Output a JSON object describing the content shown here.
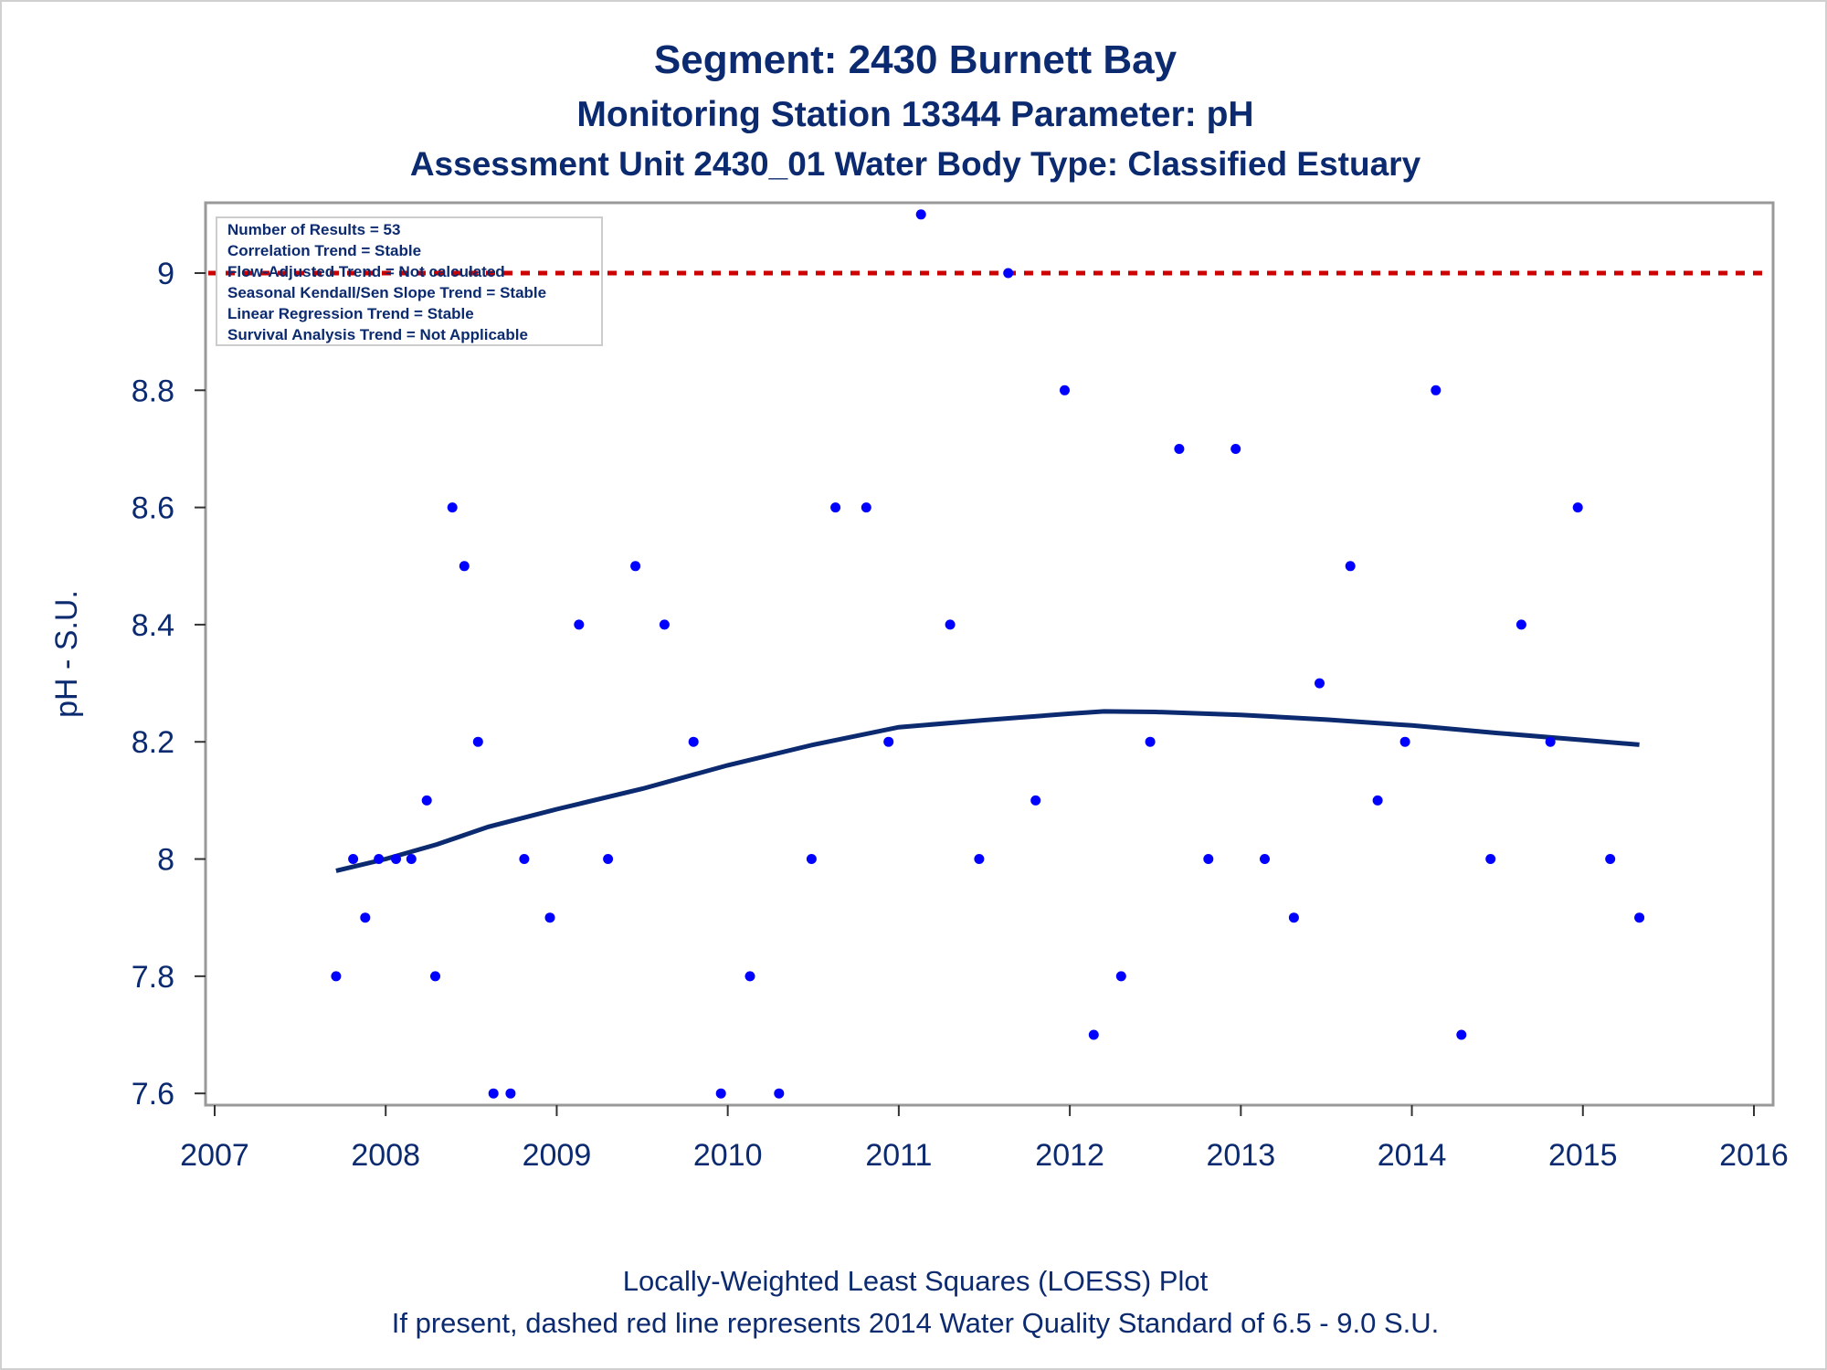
{
  "titles": {
    "line1": "Segment: 2430  Burnett Bay",
    "line2": "Monitoring Station 13344 Parameter: pH",
    "line3": "Assessment Unit 2430_01   Water Body Type: Classified Estuary"
  },
  "footnotes": {
    "line1": "Locally-Weighted Least Squares (LOESS) Plot",
    "line2": "If present, dashed red line represents 2014 Water Quality Standard of 6.5 - 9.0 S.U."
  },
  "info_box": [
    "Number of Results = 53",
    "Correlation Trend = Stable",
    "Flow-Adjusted Trend = Not calculated",
    "Seasonal Kendall/Sen Slope Trend = Stable",
    "Linear Regression Trend = Stable",
    "Survival Analysis Trend = Not Applicable"
  ],
  "colors": {
    "text": "#0b2a6f",
    "points": "#0000ff",
    "loess": "#0b2a6f",
    "standard_line": "#cc0000",
    "frame": "#999999"
  },
  "chart_data": {
    "type": "scatter",
    "ylabel": "pH - S.U.",
    "xlabel": "",
    "xlim": [
      2007,
      2016
    ],
    "ylim": [
      7.58,
      9.12
    ],
    "x_ticks": [
      2007,
      2008,
      2009,
      2010,
      2011,
      2012,
      2013,
      2014,
      2015,
      2016
    ],
    "y_ticks": [
      7.6,
      7.8,
      8,
      8.2,
      8.4,
      8.6,
      8.8,
      9
    ],
    "y_tick_labels": [
      "7.6",
      "7.8",
      "8",
      "8.2",
      "8.4",
      "8.6",
      "8.8",
      "9"
    ],
    "grid": false,
    "reference_line": {
      "y": 9.0,
      "style": "dashed",
      "color": "#cc0000"
    },
    "points": [
      [
        2007.71,
        7.8
      ],
      [
        2007.81,
        8.0
      ],
      [
        2007.88,
        7.9
      ],
      [
        2007.96,
        8.0
      ],
      [
        2008.06,
        8.0
      ],
      [
        2008.15,
        8.0
      ],
      [
        2008.24,
        8.1
      ],
      [
        2008.29,
        7.8
      ],
      [
        2008.39,
        8.6
      ],
      [
        2008.46,
        8.5
      ],
      [
        2008.54,
        8.2
      ],
      [
        2008.63,
        7.6
      ],
      [
        2008.73,
        7.6
      ],
      [
        2008.81,
        8.0
      ],
      [
        2008.96,
        7.9
      ],
      [
        2009.13,
        8.4
      ],
      [
        2009.3,
        8.0
      ],
      [
        2009.46,
        8.5
      ],
      [
        2009.63,
        8.4
      ],
      [
        2009.8,
        8.2
      ],
      [
        2009.96,
        7.6
      ],
      [
        2010.13,
        7.8
      ],
      [
        2010.3,
        7.6
      ],
      [
        2010.49,
        8.0
      ],
      [
        2010.63,
        8.6
      ],
      [
        2010.81,
        8.6
      ],
      [
        2010.94,
        8.2
      ],
      [
        2011.13,
        9.1
      ],
      [
        2011.3,
        8.4
      ],
      [
        2011.47,
        8.0
      ],
      [
        2011.64,
        9.0
      ],
      [
        2011.8,
        8.1
      ],
      [
        2011.97,
        8.8
      ],
      [
        2012.14,
        7.7
      ],
      [
        2012.3,
        7.8
      ],
      [
        2012.47,
        8.2
      ],
      [
        2012.64,
        8.7
      ],
      [
        2012.81,
        8.0
      ],
      [
        2012.97,
        8.7
      ],
      [
        2013.14,
        8.0
      ],
      [
        2013.31,
        7.9
      ],
      [
        2013.46,
        8.3
      ],
      [
        2013.64,
        8.5
      ],
      [
        2013.8,
        8.1
      ],
      [
        2013.96,
        8.2
      ],
      [
        2014.14,
        8.8
      ],
      [
        2014.29,
        7.7
      ],
      [
        2014.46,
        8.0
      ],
      [
        2014.64,
        8.4
      ],
      [
        2014.81,
        8.2
      ],
      [
        2014.97,
        8.6
      ],
      [
        2015.16,
        8.0
      ],
      [
        2015.33,
        7.9
      ]
    ],
    "loess": [
      [
        2007.71,
        7.98
      ],
      [
        2008.0,
        8.0
      ],
      [
        2008.3,
        8.025
      ],
      [
        2008.6,
        8.055
      ],
      [
        2009.0,
        8.085
      ],
      [
        2009.5,
        8.12
      ],
      [
        2010.0,
        8.16
      ],
      [
        2010.5,
        8.195
      ],
      [
        2011.0,
        8.225
      ],
      [
        2011.5,
        8.237
      ],
      [
        2012.0,
        8.248
      ],
      [
        2012.2,
        8.252
      ],
      [
        2012.5,
        8.251
      ],
      [
        2013.0,
        8.246
      ],
      [
        2013.5,
        8.238
      ],
      [
        2014.0,
        8.228
      ],
      [
        2014.5,
        8.215
      ],
      [
        2015.0,
        8.203
      ],
      [
        2015.33,
        8.195
      ]
    ]
  }
}
